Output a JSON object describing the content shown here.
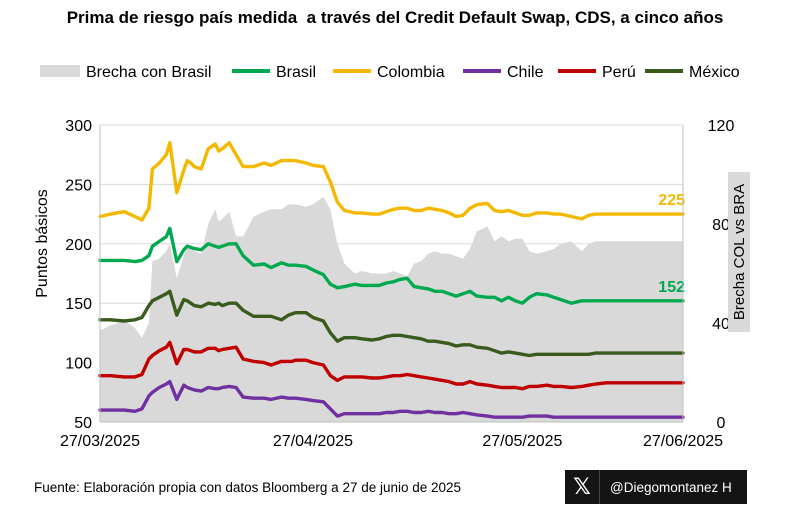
{
  "title": "Prima de riesgo país medida  a través del Credit Default Swap, CDS, a cinco años",
  "source": "Fuente: Elaboración propia con datos Bloomberg a 27 de junio de 2025",
  "badge": {
    "handle": "@Diegomontanez H"
  },
  "chart_data": {
    "type": "line",
    "ylabel": "Puntos básicos",
    "y2label": "Brecha COL vs BRA",
    "ylim": [
      50,
      300
    ],
    "y2lim": [
      0,
      120
    ],
    "yticks": [
      "50",
      "100",
      "150",
      "200",
      "250",
      "300"
    ],
    "y2ticks": [
      "0",
      "40",
      "80",
      "120"
    ],
    "xticks": [
      "27/03/2025",
      "27/04/2025",
      "27/05/2025",
      "27/06/2025"
    ],
    "legend": [
      "Brecha con Brasil",
      "Brasil",
      "Colombia",
      "Chile",
      "Perú",
      "México"
    ],
    "legend_position": "top",
    "grid": true,
    "x": [
      0,
      3,
      7,
      10,
      12,
      14,
      15,
      17,
      19,
      20,
      22,
      24,
      25,
      26,
      27,
      29,
      31,
      33,
      34,
      35,
      37,
      39,
      41,
      44,
      47,
      49,
      52,
      54,
      55,
      56,
      59,
      61,
      64,
      66,
      68,
      70,
      73,
      75,
      78,
      80,
      82,
      84,
      86,
      88,
      90,
      92,
      94,
      96,
      98,
      100,
      102,
      104,
      106,
      108,
      111,
      113,
      115,
      117,
      119,
      121,
      123,
      125,
      128,
      130,
      132,
      135,
      138,
      140,
      142,
      145,
      147,
      149,
      151,
      153,
      155,
      157,
      159,
      161,
      163,
      165,
      167
    ],
    "series": [
      {
        "name": "Colombia",
        "color": "#f5b800",
        "last_label": "225",
        "values": [
          223,
          225,
          227,
          223,
          220,
          230,
          263,
          268,
          275,
          285,
          243,
          262,
          270,
          268,
          265,
          263,
          280,
          284,
          278,
          280,
          285,
          275,
          265,
          265,
          268,
          266,
          270,
          270,
          270,
          270,
          268,
          266,
          265,
          252,
          235,
          228,
          226,
          226,
          225,
          225,
          227,
          229,
          230,
          230,
          228,
          228,
          230,
          229,
          228,
          226,
          223,
          224,
          230,
          233,
          234,
          228,
          227,
          228,
          226,
          224,
          224,
          226,
          226,
          225,
          225,
          223,
          221,
          224,
          225,
          225,
          225,
          225,
          225,
          225,
          225,
          225,
          225,
          225,
          225,
          225,
          225
        ]
      },
      {
        "name": "Brasil",
        "color": "#00a94f",
        "last_label": "152",
        "values": [
          186,
          186,
          186,
          185,
          186,
          190,
          198,
          202,
          206,
          213,
          185,
          195,
          198,
          197,
          196,
          195,
          200,
          198,
          197,
          198,
          200,
          200,
          190,
          182,
          183,
          180,
          184,
          182,
          182,
          182,
          181,
          178,
          174,
          166,
          163,
          164,
          166,
          165,
          165,
          165,
          167,
          168,
          170,
          171,
          164,
          163,
          162,
          160,
          160,
          158,
          156,
          158,
          160,
          156,
          155,
          155,
          152,
          155,
          152,
          150,
          155,
          158,
          157,
          155,
          153,
          150,
          152,
          152,
          152,
          152,
          152,
          152,
          152,
          152,
          152,
          152,
          152,
          152,
          152,
          152,
          152
        ]
      },
      {
        "name": "México",
        "color": "#3a5a1e",
        "values": [
          136,
          136,
          135,
          136,
          138,
          148,
          152,
          155,
          158,
          160,
          140,
          153,
          152,
          150,
          148,
          147,
          150,
          149,
          150,
          148,
          150,
          150,
          144,
          139,
          139,
          139,
          136,
          140,
          141,
          142,
          142,
          138,
          135,
          125,
          118,
          121,
          121,
          120,
          119,
          120,
          122,
          123,
          123,
          122,
          121,
          120,
          118,
          118,
          117,
          116,
          114,
          115,
          115,
          113,
          112,
          110,
          108,
          109,
          108,
          107,
          106,
          107,
          107,
          107,
          107,
          107,
          107,
          107,
          108,
          108,
          108,
          108,
          108,
          108,
          108,
          108,
          108,
          108,
          108,
          108,
          108
        ]
      },
      {
        "name": "Perú",
        "color": "#c00000",
        "values": [
          89,
          89,
          88,
          88,
          90,
          103,
          106,
          110,
          113,
          117,
          99,
          111,
          111,
          110,
          109,
          109,
          112,
          112,
          110,
          111,
          112,
          113,
          103,
          101,
          100,
          98,
          101,
          101,
          101,
          102,
          102,
          100,
          98,
          89,
          85,
          88,
          88,
          88,
          87,
          87,
          88,
          89,
          89,
          90,
          89,
          88,
          87,
          86,
          85,
          84,
          82,
          82,
          84,
          82,
          81,
          80,
          79,
          79,
          79,
          78,
          80,
          80,
          81,
          80,
          80,
          79,
          80,
          81,
          82,
          83,
          83,
          83,
          83,
          83,
          83,
          83,
          83,
          83,
          83,
          83,
          83
        ]
      },
      {
        "name": "Chile",
        "color": "#7030a0",
        "values": [
          60,
          60,
          60,
          59,
          61,
          72,
          75,
          79,
          82,
          84,
          69,
          81,
          79,
          78,
          77,
          76,
          79,
          78,
          78,
          79,
          80,
          79,
          71,
          70,
          70,
          69,
          71,
          70,
          70,
          70,
          69,
          68,
          67,
          61,
          55,
          57,
          57,
          57,
          57,
          57,
          58,
          58,
          59,
          59,
          58,
          58,
          59,
          58,
          58,
          57,
          57,
          58,
          57,
          56,
          55,
          54,
          54,
          54,
          54,
          54,
          55,
          55,
          55,
          54,
          54,
          54,
          54,
          54,
          54,
          54,
          54,
          54,
          54,
          54,
          54,
          54,
          54,
          54,
          54,
          54,
          54
        ]
      }
    ],
    "area": {
      "name": "Brecha con Brasil",
      "color": "#d9d9d9",
      "axis": "secondary",
      "values": [
        37,
        39,
        41,
        38,
        34,
        40,
        65,
        66,
        69,
        72,
        58,
        67,
        72,
        71,
        69,
        68,
        80,
        86,
        81,
        82,
        85,
        75,
        75,
        83,
        85,
        86,
        86,
        88,
        88,
        88,
        87,
        88,
        91,
        86,
        72,
        64,
        60,
        61,
        60,
        60,
        60,
        61,
        60,
        59,
        64,
        65,
        68,
        69,
        68,
        68,
        67,
        66,
        70,
        77,
        79,
        73,
        75,
        73,
        74,
        74,
        69,
        68,
        69,
        70,
        72,
        73,
        69,
        72,
        73,
        73,
        73,
        73,
        73,
        73,
        73,
        73,
        73,
        73,
        73,
        73,
        73
      ]
    }
  }
}
